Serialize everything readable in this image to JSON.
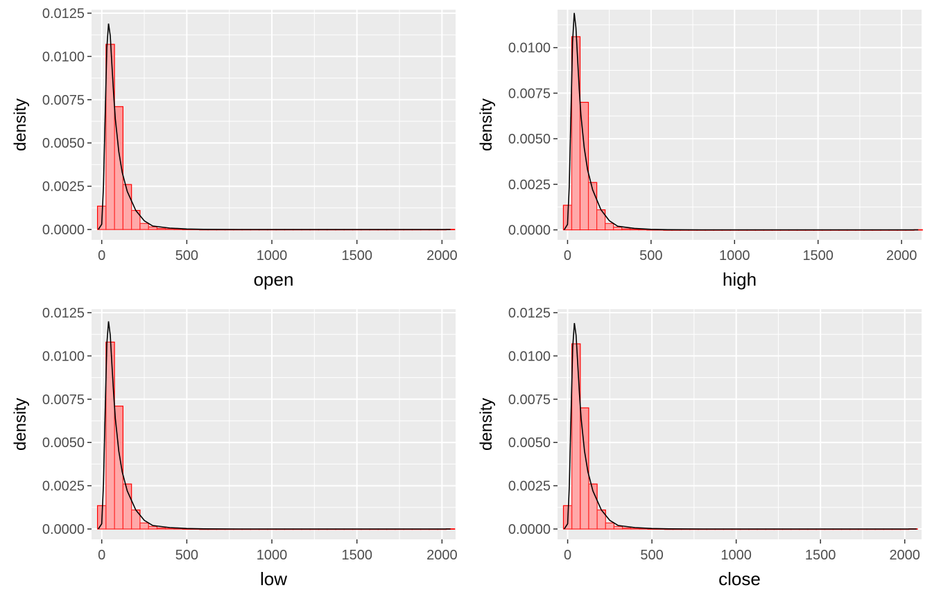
{
  "chart_data": [
    {
      "type": "bar",
      "xlabel": "open",
      "ylabel": "density",
      "xlim": [
        -60,
        2080
      ],
      "ylim": [
        -0.0006,
        0.0127
      ],
      "x_ticks": [
        "0",
        "500",
        "1000",
        "1500",
        "2000"
      ],
      "y_ticks": [
        "0.0000",
        "0.0025",
        "0.0050",
        "0.0075",
        "0.0100",
        "0.0125"
      ],
      "bin_width": 50,
      "bins_x": [
        0,
        50,
        100,
        150,
        200,
        250,
        300,
        350,
        400,
        450,
        500,
        550,
        600,
        650,
        700,
        750,
        800,
        850,
        900,
        950,
        1000,
        1050,
        1100,
        1150,
        1200,
        1250,
        1300,
        1350,
        1400,
        1450,
        1500,
        1550,
        1600,
        1650,
        1700,
        1750,
        1800,
        1850,
        1900,
        1950,
        2000,
        2050
      ],
      "bins_density": [
        0.00135,
        0.0107,
        0.0071,
        0.0026,
        0.0011,
        0.00035,
        0.00015,
        6e-05,
        3e-05,
        2e-05,
        1e-05,
        1e-05,
        0,
        0,
        0,
        0,
        0,
        0,
        0,
        0,
        0,
        0,
        0,
        0,
        0,
        0,
        0,
        0,
        0,
        0,
        0,
        0,
        0,
        0,
        0,
        0,
        0,
        0,
        0,
        0,
        0,
        1e-05
      ],
      "density_x": [
        -20,
        0,
        10,
        20,
        30,
        40,
        50,
        60,
        70,
        80,
        100,
        120,
        150,
        200,
        250,
        300,
        400,
        500,
        600,
        800,
        1000,
        1500,
        2050
      ],
      "density_y": [
        0,
        0.0003,
        0.0025,
        0.0065,
        0.0105,
        0.0119,
        0.0112,
        0.0095,
        0.0078,
        0.0064,
        0.0045,
        0.0033,
        0.0022,
        0.0011,
        0.0005,
        0.0002,
        8e-05,
        3e-05,
        1e-05,
        0,
        0,
        0,
        0
      ]
    },
    {
      "type": "bar",
      "xlabel": "high",
      "ylabel": "density",
      "xlim": [
        -60,
        2120
      ],
      "ylim": [
        -0.00055,
        0.01208
      ],
      "x_ticks": [
        "0",
        "500",
        "1000",
        "1500",
        "2000"
      ],
      "y_ticks": [
        "0.0000",
        "0.0025",
        "0.0050",
        "0.0075",
        "0.0100"
      ],
      "bin_width": 50,
      "bins_x": [
        0,
        50,
        100,
        150,
        200,
        250,
        300,
        350,
        400,
        450,
        500,
        550,
        600,
        650,
        700,
        750,
        800,
        850,
        900,
        950,
        1000,
        1050,
        1100,
        1150,
        1200,
        1250,
        1300,
        1350,
        1400,
        1450,
        1500,
        1550,
        1600,
        1650,
        1700,
        1750,
        1800,
        1850,
        1900,
        1950,
        2000,
        2050,
        2100
      ],
      "bins_density": [
        0.00135,
        0.0106,
        0.007,
        0.0026,
        0.0011,
        0.00035,
        0.00015,
        6e-05,
        3e-05,
        2e-05,
        1e-05,
        1e-05,
        0,
        0,
        0,
        0,
        0,
        0,
        0,
        0,
        0,
        0,
        0,
        0,
        0,
        0,
        0,
        0,
        0,
        0,
        0,
        0,
        0,
        0,
        0,
        0,
        0,
        0,
        0,
        0,
        0,
        0,
        1e-05
      ],
      "density_x": [
        -20,
        0,
        10,
        20,
        30,
        40,
        50,
        60,
        70,
        80,
        100,
        120,
        150,
        200,
        250,
        300,
        400,
        500,
        600,
        800,
        1000,
        1500,
        2100
      ],
      "density_y": [
        0,
        0.0003,
        0.0024,
        0.0063,
        0.0103,
        0.0119,
        0.0111,
        0.0094,
        0.0077,
        0.0063,
        0.0045,
        0.0033,
        0.0022,
        0.0011,
        0.0005,
        0.0002,
        8e-05,
        3e-05,
        1e-05,
        0,
        0,
        0,
        0
      ]
    },
    {
      "type": "bar",
      "xlabel": "low",
      "ylabel": "density",
      "xlim": [
        -60,
        2080
      ],
      "ylim": [
        -0.0006,
        0.0127
      ],
      "x_ticks": [
        "0",
        "500",
        "1000",
        "1500",
        "2000"
      ],
      "y_ticks": [
        "0.0000",
        "0.0025",
        "0.0050",
        "0.0075",
        "0.0100",
        "0.0125"
      ],
      "bin_width": 50,
      "bins_x": [
        0,
        50,
        100,
        150,
        200,
        250,
        300,
        350,
        400,
        450,
        500,
        550,
        600,
        650,
        700,
        750,
        800,
        850,
        900,
        950,
        1000,
        1050,
        1100,
        1150,
        1200,
        1250,
        1300,
        1350,
        1400,
        1450,
        1500,
        1550,
        1600,
        1650,
        1700,
        1750,
        1800,
        1850,
        1900,
        1950,
        2000,
        2050
      ],
      "bins_density": [
        0.00135,
        0.0108,
        0.0071,
        0.0026,
        0.0011,
        0.00035,
        0.00015,
        6e-05,
        3e-05,
        2e-05,
        1e-05,
        1e-05,
        0,
        0,
        0,
        0,
        0,
        0,
        0,
        0,
        0,
        0,
        0,
        0,
        0,
        0,
        0,
        0,
        0,
        0,
        0,
        0,
        0,
        0,
        0,
        0,
        0,
        0,
        0,
        0,
        0,
        1e-05
      ],
      "density_x": [
        -20,
        0,
        10,
        20,
        30,
        40,
        50,
        60,
        70,
        80,
        100,
        120,
        150,
        200,
        250,
        300,
        400,
        500,
        600,
        800,
        1000,
        1500,
        2050
      ],
      "density_y": [
        0,
        0.0003,
        0.0026,
        0.0067,
        0.0107,
        0.012,
        0.0112,
        0.0095,
        0.0078,
        0.0064,
        0.0045,
        0.0033,
        0.0022,
        0.0011,
        0.0005,
        0.0002,
        8e-05,
        3e-05,
        1e-05,
        0,
        0,
        0,
        0
      ]
    },
    {
      "type": "bar",
      "xlabel": "close",
      "ylabel": "density",
      "xlim": [
        -60,
        2100
      ],
      "ylim": [
        -0.0006,
        0.0127
      ],
      "x_ticks": [
        "0",
        "500",
        "1000",
        "1500",
        "2000"
      ],
      "y_ticks": [
        "0.0000",
        "0.0025",
        "0.0050",
        "0.0075",
        "0.0100",
        "0.0125"
      ],
      "bin_width": 50,
      "bins_x": [
        0,
        50,
        100,
        150,
        200,
        250,
        300,
        350,
        400,
        450,
        500,
        550,
        600,
        650,
        700,
        750,
        800,
        850,
        900,
        950,
        1000,
        1050,
        1100,
        1150,
        1200,
        1250,
        1300,
        1350,
        1400,
        1450,
        1500,
        1550,
        1600,
        1650,
        1700,
        1750,
        1800,
        1850,
        1900,
        1950,
        2000,
        2050
      ],
      "bins_density": [
        0.00135,
        0.0107,
        0.007,
        0.0026,
        0.0011,
        0.00035,
        0.00015,
        6e-05,
        3e-05,
        2e-05,
        1e-05,
        1e-05,
        0,
        0,
        0,
        0,
        0,
        0,
        0,
        0,
        0,
        0,
        0,
        0,
        0,
        0,
        0,
        0,
        0,
        0,
        0,
        0,
        0,
        0,
        0,
        0,
        0,
        0,
        0,
        0,
        0,
        1e-05
      ],
      "density_x": [
        -20,
        0,
        10,
        20,
        30,
        40,
        50,
        60,
        70,
        80,
        100,
        120,
        150,
        200,
        250,
        300,
        400,
        500,
        600,
        800,
        1000,
        1500,
        2070
      ],
      "density_y": [
        0,
        0.0003,
        0.0025,
        0.0065,
        0.0105,
        0.0119,
        0.0112,
        0.0095,
        0.0078,
        0.0064,
        0.0045,
        0.0033,
        0.0022,
        0.0011,
        0.0005,
        0.0002,
        8e-05,
        3e-05,
        1e-05,
        0,
        0,
        0,
        0
      ]
    }
  ],
  "colors": {
    "panel_background": "#ebebeb",
    "grid": "#ffffff",
    "bar_fill": "#ff9b9b",
    "bar_outline": "#ff0000",
    "density_line": "#000000",
    "tick_text": "#4d4d4d"
  }
}
